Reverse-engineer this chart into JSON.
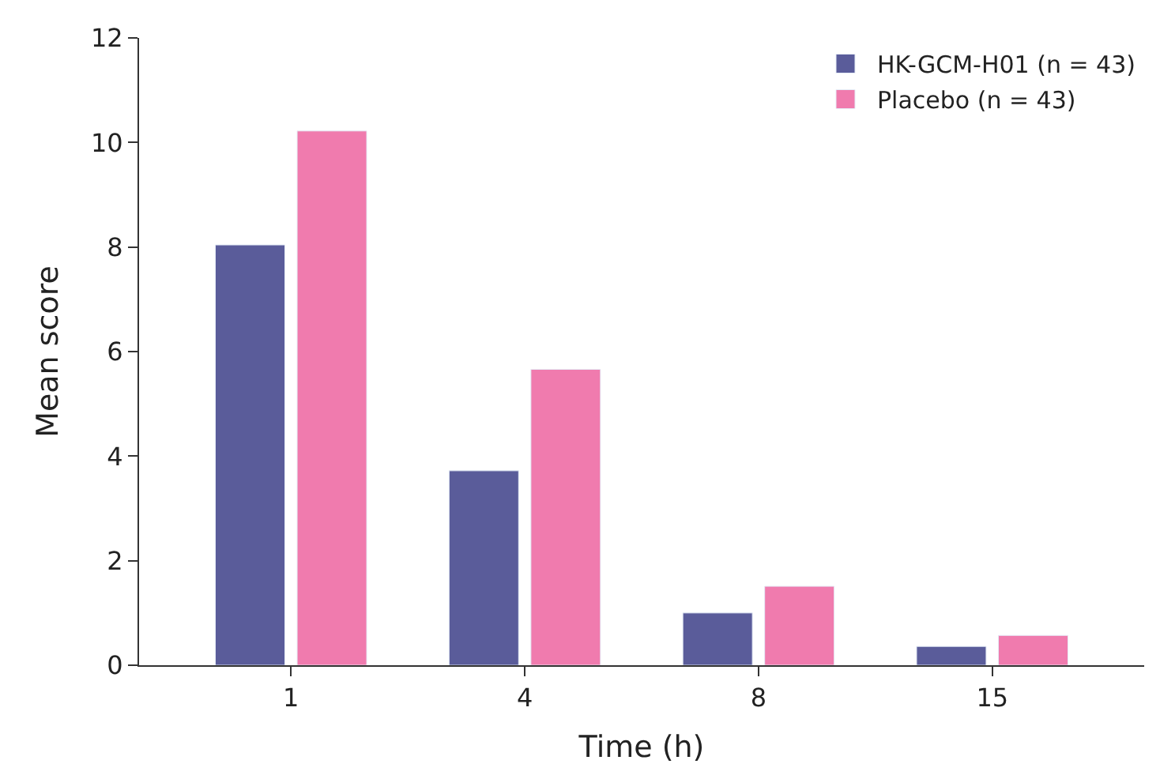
{
  "chart_data": {
    "type": "bar",
    "xlabel": "Time (h)",
    "ylabel": "Mean score",
    "categories": [
      "1",
      "4",
      "8",
      "15"
    ],
    "series": [
      {
        "name": "HK-GCM-H01 (n = 43)",
        "color": "#5a5c9a",
        "values": [
          8.04,
          3.72,
          1.0,
          0.36
        ]
      },
      {
        "name": "Placebo (n = 43)",
        "color": "#f07bae",
        "values": [
          10.22,
          5.66,
          1.51,
          0.57
        ]
      }
    ],
    "ylim": [
      0,
      12
    ],
    "yticks": [
      0,
      2,
      4,
      6,
      8,
      10,
      12
    ],
    "legend": "top right"
  }
}
